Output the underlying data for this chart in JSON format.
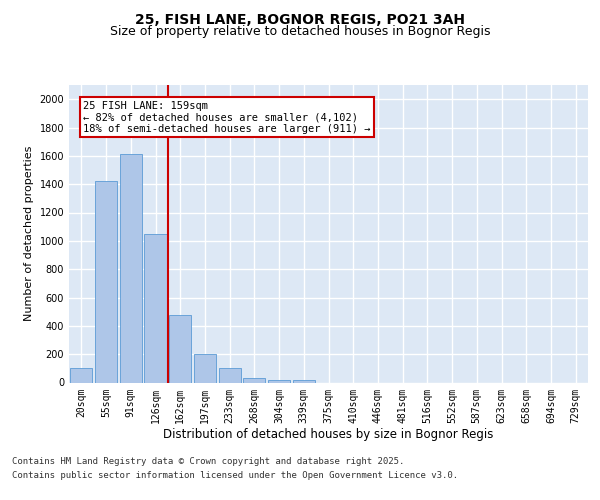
{
  "title": "25, FISH LANE, BOGNOR REGIS, PO21 3AH",
  "subtitle": "Size of property relative to detached houses in Bognor Regis",
  "xlabel": "Distribution of detached houses by size in Bognor Regis",
  "ylabel": "Number of detached properties",
  "categories": [
    "20sqm",
    "55sqm",
    "91sqm",
    "126sqm",
    "162sqm",
    "197sqm",
    "233sqm",
    "268sqm",
    "304sqm",
    "339sqm",
    "375sqm",
    "410sqm",
    "446sqm",
    "481sqm",
    "516sqm",
    "552sqm",
    "587sqm",
    "623sqm",
    "658sqm",
    "694sqm",
    "729sqm"
  ],
  "values": [
    100,
    1420,
    1610,
    1050,
    480,
    200,
    100,
    35,
    20,
    20,
    0,
    0,
    0,
    0,
    0,
    0,
    0,
    0,
    0,
    0,
    0
  ],
  "bar_color": "#aec6e8",
  "bar_edge_color": "#5b9bd5",
  "vline_x": 3.5,
  "vline_color": "#cc0000",
  "annotation_text": "25 FISH LANE: 159sqm\n← 82% of detached houses are smaller (4,102)\n18% of semi-detached houses are larger (911) →",
  "annotation_box_facecolor": "#ffffff",
  "annotation_box_edgecolor": "#cc0000",
  "ylim": [
    0,
    2100
  ],
  "yticks": [
    0,
    200,
    400,
    600,
    800,
    1000,
    1200,
    1400,
    1600,
    1800,
    2000
  ],
  "plot_bg_color": "#dde8f5",
  "grid_color": "#ffffff",
  "footer_line1": "Contains HM Land Registry data © Crown copyright and database right 2025.",
  "footer_line2": "Contains public sector information licensed under the Open Government Licence v3.0.",
  "title_fontsize": 10,
  "subtitle_fontsize": 9,
  "xlabel_fontsize": 8.5,
  "ylabel_fontsize": 8,
  "tick_fontsize": 7,
  "annotation_fontsize": 7.5,
  "footer_fontsize": 6.5
}
